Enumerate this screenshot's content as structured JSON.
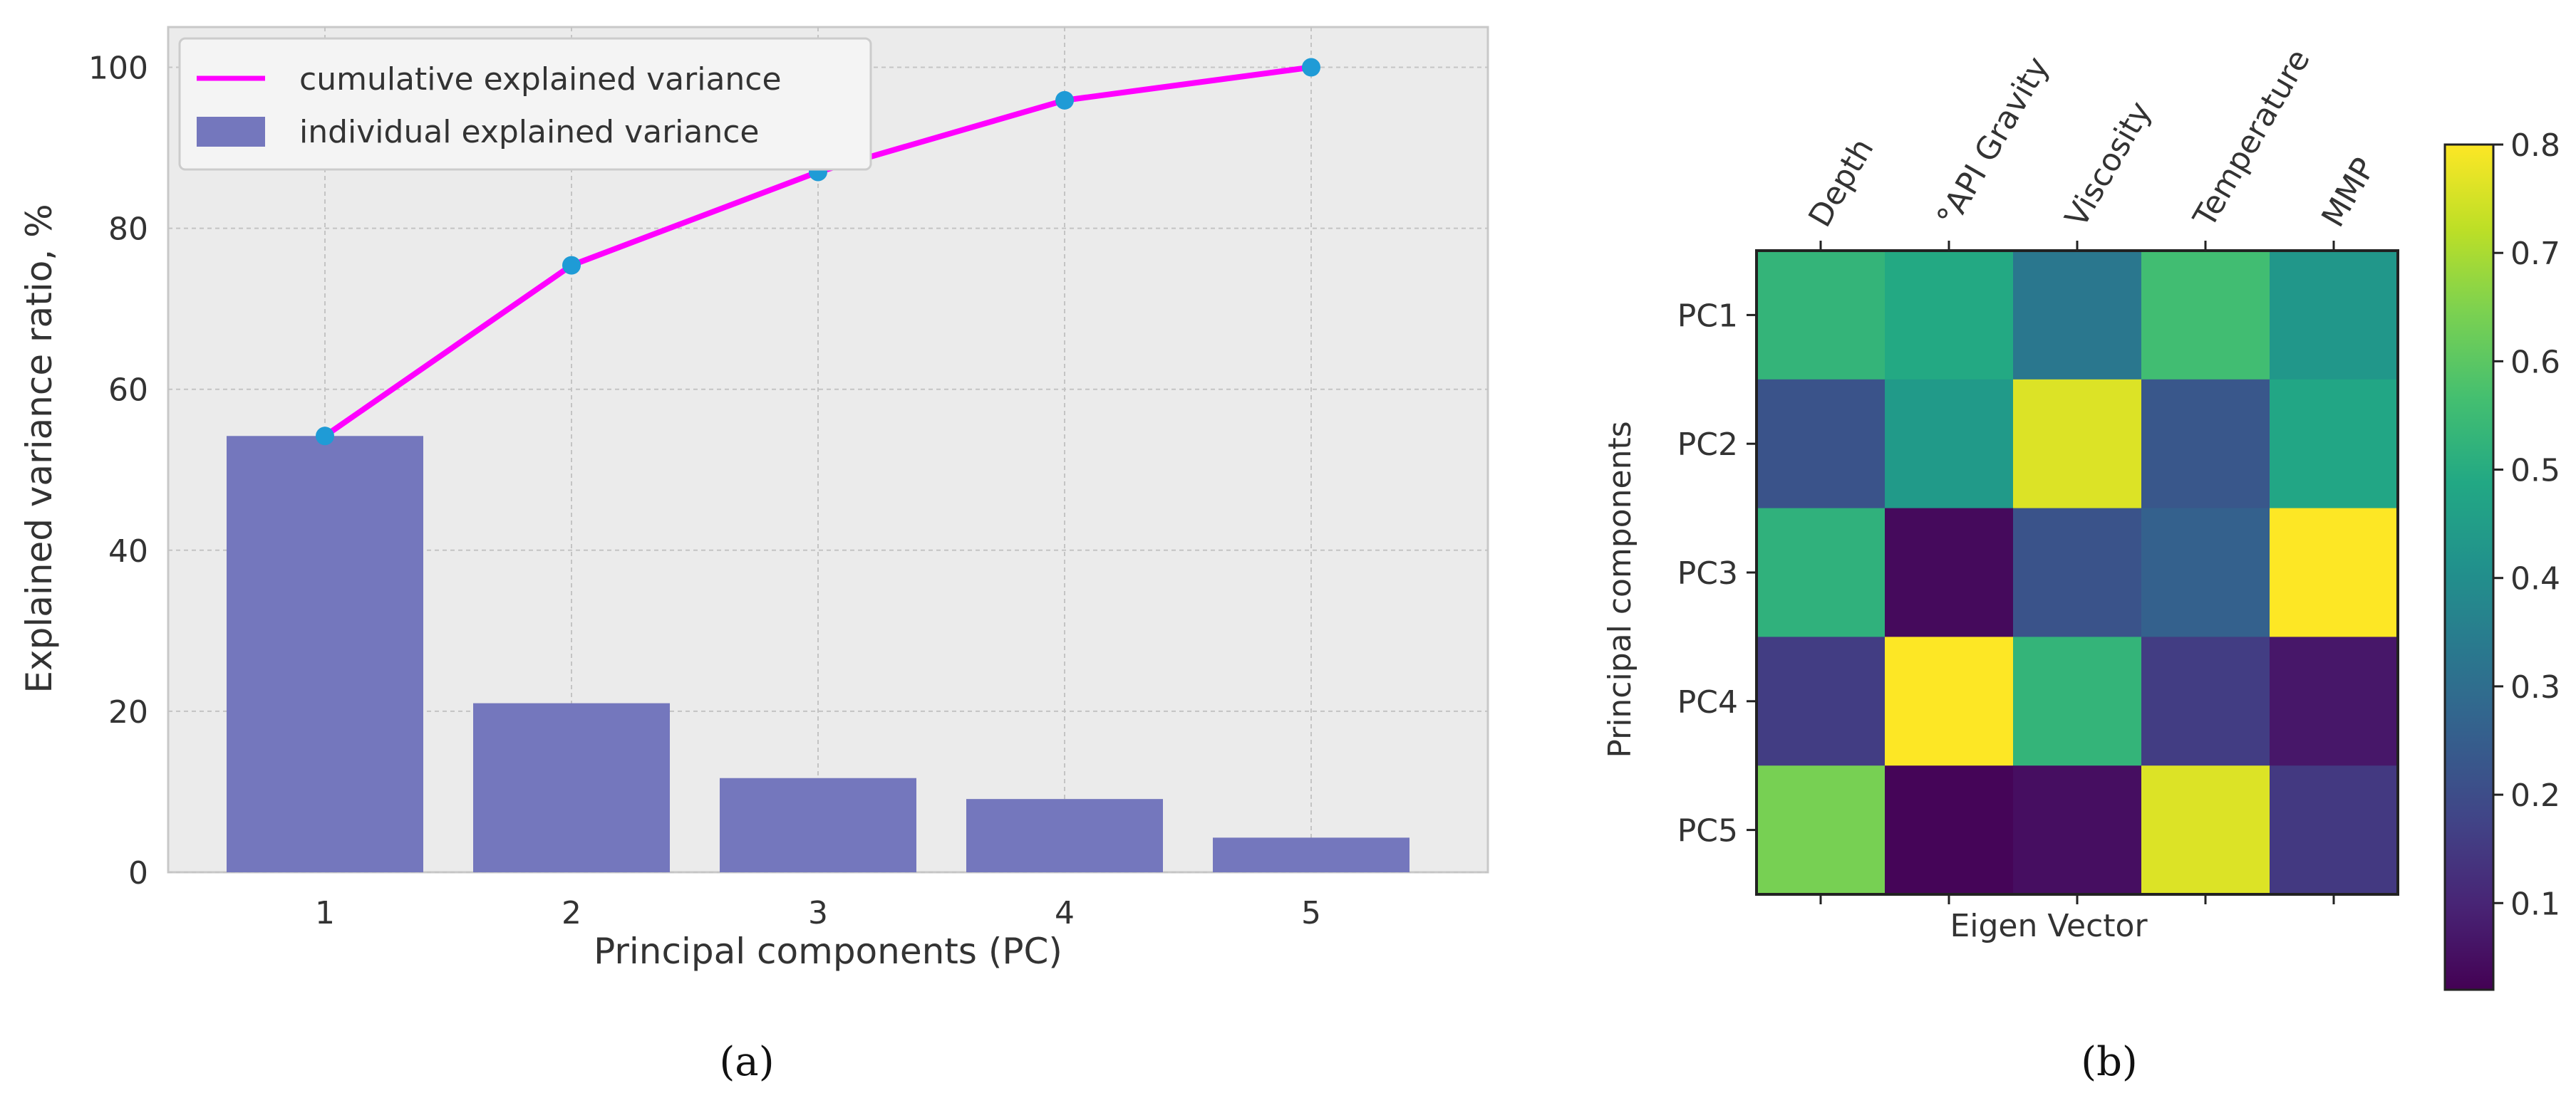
{
  "chart_data": [
    {
      "panel": "(a)",
      "type": "bar",
      "categories": [
        "1",
        "2",
        "3",
        "4",
        "5"
      ],
      "series": [
        {
          "name": "individual explained variance",
          "kind": "bar",
          "color": "#7477bd",
          "values": [
            54.2,
            21.0,
            11.7,
            9.1,
            4.3
          ]
        },
        {
          "name": "cumulative explained variance",
          "kind": "line",
          "color": "#ff00ff",
          "marker_color": "#1f9bd6",
          "values": [
            54.2,
            75.4,
            87.0,
            95.9,
            100.0
          ]
        }
      ],
      "xlabel": "Principal components (PC)",
      "ylabel": "Explained variance ratio, %",
      "ylim": [
        0,
        105
      ],
      "yticks": [
        0,
        20,
        40,
        60,
        80,
        100
      ],
      "grid": true,
      "legend_position": "top-left",
      "background": "#ebebeb"
    },
    {
      "panel": "(b)",
      "type": "heatmap",
      "columns": [
        "Depth",
        "°API Gravity",
        "Viscosity",
        "Temperature",
        "MMP"
      ],
      "rows": [
        "PC1",
        "PC2",
        "PC3",
        "PC4",
        "PC5"
      ],
      "values": [
        [
          0.53,
          0.49,
          0.33,
          0.56,
          0.43
        ],
        [
          0.22,
          0.44,
          0.76,
          0.23,
          0.48
        ],
        [
          0.52,
          0.04,
          0.22,
          0.26,
          0.8
        ],
        [
          0.16,
          0.8,
          0.53,
          0.16,
          0.07
        ],
        [
          0.64,
          0.03,
          0.05,
          0.76,
          0.15
        ]
      ],
      "xlabel": "Eigen Vector",
      "ylabel": "Principal components",
      "colormap": "viridis",
      "colorbar_range": [
        0.02,
        0.8
      ],
      "colorbar_ticks": [
        0.1,
        0.2,
        0.3,
        0.4,
        0.5,
        0.6,
        0.7,
        0.8
      ]
    }
  ],
  "captions": {
    "a": "(a)",
    "b": "(b)"
  }
}
